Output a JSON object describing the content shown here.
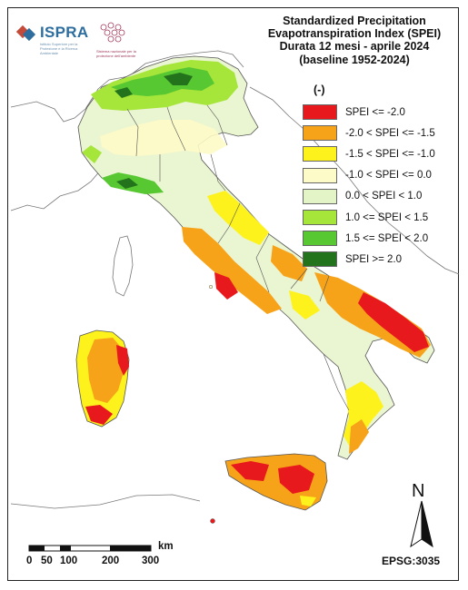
{
  "title": {
    "line1": "Standardized Precipitation",
    "line2": "Evapotranspiration  Index (SPEI)",
    "line3": "Durata 12 mesi - aprile 2024",
    "line4": "(baseline 1952-2024)"
  },
  "logos": {
    "ispra_name": "ISPRA",
    "ispra_sub": "Istituto Superiore per la Protezione e la Ricerca Ambientale",
    "snpa_sub": "Sistema nazionale per la protezione dell'ambiente"
  },
  "legend": {
    "unit": "(-)",
    "classes": [
      {
        "label": "SPEI <= -2.0",
        "color": "#e8191d"
      },
      {
        "label": "-2.0 < SPEI <= -1.5",
        "color": "#f7a31a"
      },
      {
        "label": "-1.5 < SPEI <= -1.0",
        "color": "#fdf21c"
      },
      {
        "label": "-1.0 < SPEI <= 0.0",
        "color": "#fdfbc7"
      },
      {
        "label": "0.0 < SPEI < 1.0",
        "color": "#e3f5c6"
      },
      {
        "label": "1.0 <= SPEI < 1.5",
        "color": "#a6e53a"
      },
      {
        "label": "1.5 <= SPEI < 2.0",
        "color": "#58c832"
      },
      {
        "label": "SPEI >= 2.0",
        "color": "#23731c"
      }
    ]
  },
  "north_label": "N",
  "projection": "EPSG:3035",
  "scale_bar": {
    "unit": "km",
    "ticks": [
      "0",
      "50",
      "100",
      "200",
      "300"
    ]
  }
}
